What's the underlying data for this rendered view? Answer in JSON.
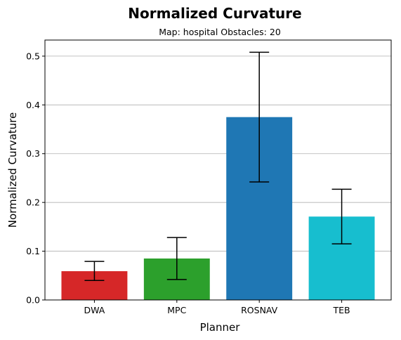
{
  "chart_data": {
    "type": "bar",
    "title": "Normalized Curvature",
    "subtitle": "Map: hospital Obstacles: 20",
    "xlabel": "Planner",
    "ylabel": "Normalized Curvature",
    "categories": [
      "DWA",
      "MPC",
      "ROSNAV",
      "TEB"
    ],
    "values": [
      0.059,
      0.085,
      0.375,
      0.171
    ],
    "error_low": [
      0.04,
      0.042,
      0.242,
      0.115
    ],
    "error_high": [
      0.079,
      0.128,
      0.508,
      0.227
    ],
    "colors": [
      "#d62728",
      "#2ca02c",
      "#1f77b4",
      "#17becf"
    ],
    "ylim": [
      0,
      0.533
    ],
    "yticks": [
      0.0,
      0.1,
      0.2,
      0.3,
      0.4,
      0.5
    ],
    "ytick_labels": [
      "0.0",
      "0.1",
      "0.2",
      "0.3",
      "0.4",
      "0.5"
    ],
    "grid": "y"
  }
}
